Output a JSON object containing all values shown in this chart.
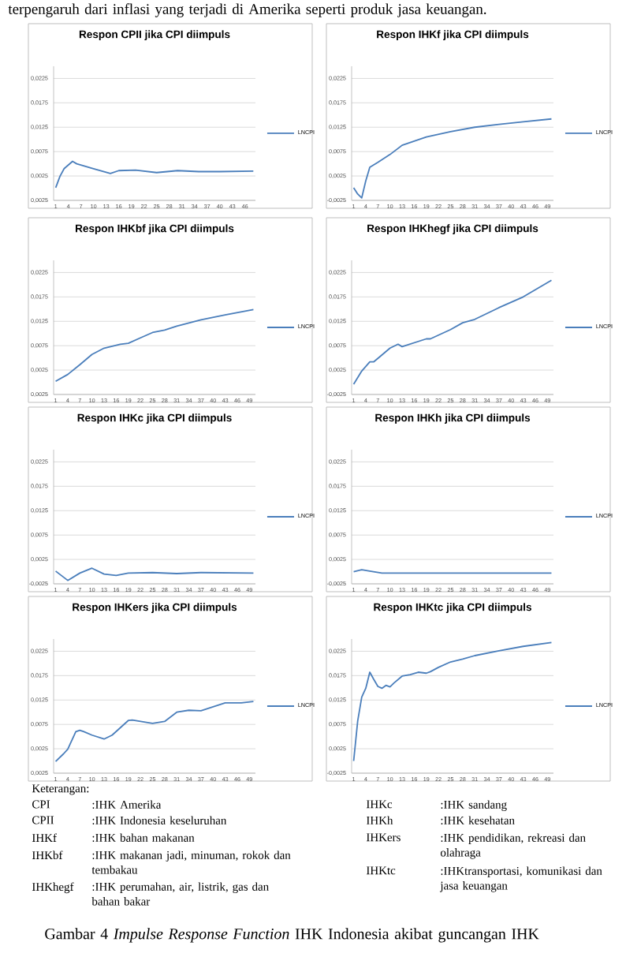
{
  "chart_data": [
    {
      "type": "line",
      "title": "Respon CPII jika CPI diimpuls",
      "annotations": [
        "terpengaruh dari inflasi yang terjadi di Amerika seperti produk jasa keuangan."
      ],
      "x": [
        1,
        2,
        3,
        5,
        6,
        10,
        14,
        16,
        20,
        25,
        30,
        35,
        40,
        48
      ],
      "series": [
        {
          "name": "LNCPI",
          "color": "#4a7ebb",
          "values": [
            0.0001,
            0.0024,
            0.004,
            0.0055,
            0.005,
            0.004,
            0.003,
            0.0036,
            0.0037,
            0.0032,
            0.0036,
            0.0034,
            0.0034,
            0.0035
          ]
        }
      ],
      "xlim": [
        0.5,
        48.5
      ],
      "xticks": [
        1,
        4,
        7,
        10,
        13,
        16,
        19,
        22,
        25,
        28,
        31,
        34,
        37,
        40,
        43,
        46
      ],
      "ylim": [
        -0.0025,
        0.025
      ],
      "yticks": [
        {
          "value": -0.0025,
          "label": "0,0025"
        },
        {
          "value": 0.0025,
          "label": "0,0025"
        },
        {
          "value": 0.0075,
          "label": "0,0075"
        },
        {
          "value": 0.0125,
          "label": "0,0125"
        },
        {
          "value": 0.0175,
          "label": "0,0175"
        },
        {
          "value": 0.0225,
          "label": "0,0225"
        }
      ],
      "grid": "y",
      "legend": "right"
    },
    {
      "type": "line",
      "title": "Respon IHKf jika CPI diimpuls",
      "x": [
        1,
        2,
        3,
        4,
        5,
        7,
        10,
        13,
        19,
        25,
        31,
        37,
        43,
        50
      ],
      "series": [
        {
          "name": "LNCPI",
          "color": "#4a7ebb",
          "values": [
            0.0001,
            -0.0012,
            -0.002,
            0.0015,
            0.0043,
            0.0053,
            0.0069,
            0.0088,
            0.0105,
            0.0116,
            0.0125,
            0.0131,
            0.0136,
            0.0142
          ]
        }
      ],
      "xlim": [
        0.5,
        50.5
      ],
      "xticks": [
        1,
        4,
        7,
        10,
        13,
        16,
        19,
        22,
        25,
        28,
        31,
        34,
        37,
        40,
        43,
        46,
        49
      ],
      "ylim": [
        -0.0025,
        0.025
      ],
      "yticks": [
        {
          "value": -0.0025,
          "label": "-0,0025"
        },
        {
          "value": 0.0025,
          "label": "0,0025"
        },
        {
          "value": 0.0075,
          "label": "0,0075"
        },
        {
          "value": 0.0125,
          "label": "0,0125"
        },
        {
          "value": 0.0175,
          "label": "0,0175"
        },
        {
          "value": 0.0225,
          "label": "0,0225"
        }
      ],
      "grid": "y",
      "legend": "right"
    },
    {
      "type": "line",
      "title": "Respon IHKbf jika CPI diimpuls",
      "x": [
        1,
        4,
        7,
        10,
        13,
        17,
        19,
        22,
        25,
        28,
        31,
        37,
        43,
        50
      ],
      "series": [
        {
          "name": "LNCPI",
          "color": "#4a7ebb",
          "values": [
            0.0002,
            0.0016,
            0.0036,
            0.0057,
            0.007,
            0.0078,
            0.008,
            0.0091,
            0.0102,
            0.0107,
            0.0115,
            0.0128,
            0.0138,
            0.0149
          ]
        }
      ],
      "xlim": [
        0.5,
        50.5
      ],
      "xticks": [
        1,
        4,
        7,
        10,
        13,
        16,
        19,
        22,
        25,
        28,
        31,
        34,
        37,
        40,
        43,
        46,
        49
      ],
      "ylim": [
        -0.0025,
        0.025
      ],
      "yticks": [
        {
          "value": -0.0025,
          "label": "0,0025"
        },
        {
          "value": 0.0025,
          "label": "0,0025"
        },
        {
          "value": 0.0075,
          "label": "0,0075"
        },
        {
          "value": 0.0125,
          "label": "0,0125"
        },
        {
          "value": 0.0175,
          "label": "0,0175"
        },
        {
          "value": 0.0225,
          "label": "0,0225"
        }
      ],
      "grid": "y",
      "legend": "right"
    },
    {
      "type": "line",
      "title": "Respon IHKhegf jika CPI diimpuls",
      "x": [
        1,
        3,
        5,
        6,
        7,
        10,
        12,
        13,
        16,
        19,
        20,
        25,
        28,
        31,
        37,
        43,
        50
      ],
      "series": [
        {
          "name": "LNCPI",
          "color": "#4a7ebb",
          "values": [
            -0.0004,
            0.0023,
            0.0042,
            0.0042,
            0.0049,
            0.007,
            0.0078,
            0.0073,
            0.0081,
            0.0089,
            0.0089,
            0.0108,
            0.0122,
            0.0129,
            0.0153,
            0.0175,
            0.0209
          ]
        }
      ],
      "xlim": [
        0.5,
        50.5
      ],
      "xticks": [
        1,
        4,
        7,
        10,
        13,
        16,
        19,
        22,
        25,
        28,
        31,
        34,
        37,
        40,
        43,
        46,
        49
      ],
      "ylim": [
        -0.0025,
        0.025
      ],
      "yticks": [
        {
          "value": -0.0025,
          "label": "-0,0025"
        },
        {
          "value": 0.0025,
          "label": "0,0025"
        },
        {
          "value": 0.0075,
          "label": "0,0075"
        },
        {
          "value": 0.0125,
          "label": "0,0125"
        },
        {
          "value": 0.0175,
          "label": "0,0175"
        },
        {
          "value": 0.0225,
          "label": "0,0225"
        }
      ],
      "grid": "y",
      "legend": "right"
    },
    {
      "type": "line",
      "title": "Respon IHKc jika CPI diimpuls",
      "x": [
        1,
        4,
        7,
        10,
        13,
        16,
        19,
        25,
        31,
        37,
        50
      ],
      "series": [
        {
          "name": "LNCPI",
          "color": "#4a7ebb",
          "values": [
            0.0001,
            -0.0018,
            -0.0003,
            0.0007,
            -0.0005,
            -0.0008,
            -0.0003,
            -0.0002,
            -0.0004,
            -0.0002,
            -0.0003
          ]
        }
      ],
      "xlim": [
        0.5,
        50.5
      ],
      "xticks": [
        1,
        4,
        7,
        10,
        13,
        16,
        19,
        22,
        25,
        28,
        31,
        34,
        37,
        40,
        43,
        46,
        49
      ],
      "ylim": [
        -0.0025,
        0.025
      ],
      "yticks": [
        {
          "value": -0.0025,
          "label": "-0,0025"
        },
        {
          "value": 0.0025,
          "label": "0,0025"
        },
        {
          "value": 0.0075,
          "label": "0,0075"
        },
        {
          "value": 0.0125,
          "label": "0,0125"
        },
        {
          "value": 0.0175,
          "label": "0,0175"
        },
        {
          "value": 0.0225,
          "label": "0,0225"
        }
      ],
      "grid": "y",
      "legend": "right"
    },
    {
      "type": "line",
      "title": "Respon IHKh jika CPI diimpuls",
      "x": [
        1,
        3,
        5,
        8,
        50
      ],
      "series": [
        {
          "name": "LNCPI",
          "color": "#4a7ebb",
          "values": [
            0,
            0.0004,
            0.0001,
            -0.0003,
            -0.0003
          ]
        }
      ],
      "xlim": [
        0.5,
        50.5
      ],
      "xticks": [
        1,
        4,
        7,
        10,
        13,
        16,
        19,
        22,
        25,
        28,
        31,
        34,
        37,
        40,
        43,
        46,
        49
      ],
      "ylim": [
        -0.0025,
        0.025
      ],
      "yticks": [
        {
          "value": -0.0025,
          "label": "-0,0025"
        },
        {
          "value": 0.0025,
          "label": "0,0025"
        },
        {
          "value": 0.0075,
          "label": "0,0075"
        },
        {
          "value": 0.0125,
          "label": "0,0125"
        },
        {
          "value": 0.0175,
          "label": "0,0175"
        },
        {
          "value": 0.0225,
          "label": "0,0225"
        }
      ],
      "grid": "y",
      "legend": "right"
    },
    {
      "type": "line",
      "title": "Respon IHKers jika CPI diimpuls",
      "x": [
        1,
        3,
        4,
        6,
        7,
        8,
        10,
        13,
        15,
        19,
        20,
        25,
        28,
        31,
        34,
        37,
        40,
        43,
        47,
        50
      ],
      "series": [
        {
          "name": "LNCPI",
          "color": "#4a7ebb",
          "values": [
            -0.0001,
            0.0015,
            0.0024,
            0.006,
            0.0063,
            0.006,
            0.0053,
            0.0045,
            0.0053,
            0.0083,
            0.0084,
            0.0077,
            0.0081,
            0.01,
            0.0104,
            0.0103,
            0.0111,
            0.0119,
            0.0119,
            0.0122
          ]
        }
      ],
      "xlim": [
        0.5,
        50.5
      ],
      "xticks": [
        1,
        4,
        7,
        10,
        13,
        16,
        19,
        22,
        25,
        28,
        31,
        34,
        37,
        40,
        43,
        46,
        49
      ],
      "ylim": [
        -0.0025,
        0.025
      ],
      "yticks": [
        {
          "value": -0.0025,
          "label": "0,0025"
        },
        {
          "value": 0.0025,
          "label": "0,0025"
        },
        {
          "value": 0.0075,
          "label": "0,0075"
        },
        {
          "value": 0.0125,
          "label": "0,0125"
        },
        {
          "value": 0.0175,
          "label": "0,0175"
        },
        {
          "value": 0.0225,
          "label": "0,0225"
        }
      ],
      "grid": "y",
      "legend": "right"
    },
    {
      "type": "line",
      "title": "Respon IHKtc jika CPI diimpuls",
      "annotations": [
        "Keterangan:",
        "CPI",
        ":IHK Amerika",
        "CPII",
        ":IHK Indonesia keseluruhan",
        "IHKf",
        ":IHK bahan makanan",
        "IHKbf",
        ":IHK makanan jadi, minuman, rokok dan tembakau",
        "IHKhegf",
        ":IHK perumahan, air, listrik, gas dan bahan bakar",
        "IHKc",
        ":IHK sandang",
        "IHKh",
        ":IHK kesehatan",
        "IHKers",
        ":IHK pendidikan, rekreasi dan olahraga",
        "IHKtc",
        ":IHKtransportasi, komunikasi dan jasa keuangan",
        "Gambar 4 *Impulse Response Function* IHK Indonesia akibat guncangan IHK"
      ],
      "x": [
        1,
        2,
        3,
        4,
        5,
        6,
        7,
        8,
        9,
        10,
        11,
        13,
        15,
        17,
        19,
        20,
        22,
        25,
        28,
        31,
        37,
        43,
        50
      ],
      "series": [
        {
          "name": "LNCPI",
          "color": "#4a7ebb",
          "values": [
            0,
            0.0082,
            0.0131,
            0.0149,
            0.0182,
            0.0167,
            0.0153,
            0.0149,
            0.0155,
            0.0152,
            0.016,
            0.0174,
            0.0177,
            0.0182,
            0.018,
            0.0183,
            0.0192,
            0.0203,
            0.0209,
            0.0216,
            0.0226,
            0.0235,
            0.0243
          ]
        }
      ],
      "xlim": [
        0.5,
        50.5
      ],
      "xticks": [
        1,
        4,
        7,
        10,
        13,
        16,
        19,
        22,
        25,
        28,
        31,
        34,
        37,
        40,
        43,
        46,
        49
      ],
      "ylim": [
        -0.0025,
        0.025
      ],
      "yticks": [
        {
          "value": -0.0025,
          "label": "-0,0025"
        },
        {
          "value": 0.0025,
          "label": "0,0025"
        },
        {
          "value": 0.0075,
          "label": "0,0075"
        },
        {
          "value": 0.0125,
          "label": "0,0125"
        },
        {
          "value": 0.0175,
          "label": "0,0175"
        },
        {
          "value": 0.0225,
          "label": "0,0225"
        }
      ],
      "grid": "y",
      "legend": "right"
    }
  ]
}
